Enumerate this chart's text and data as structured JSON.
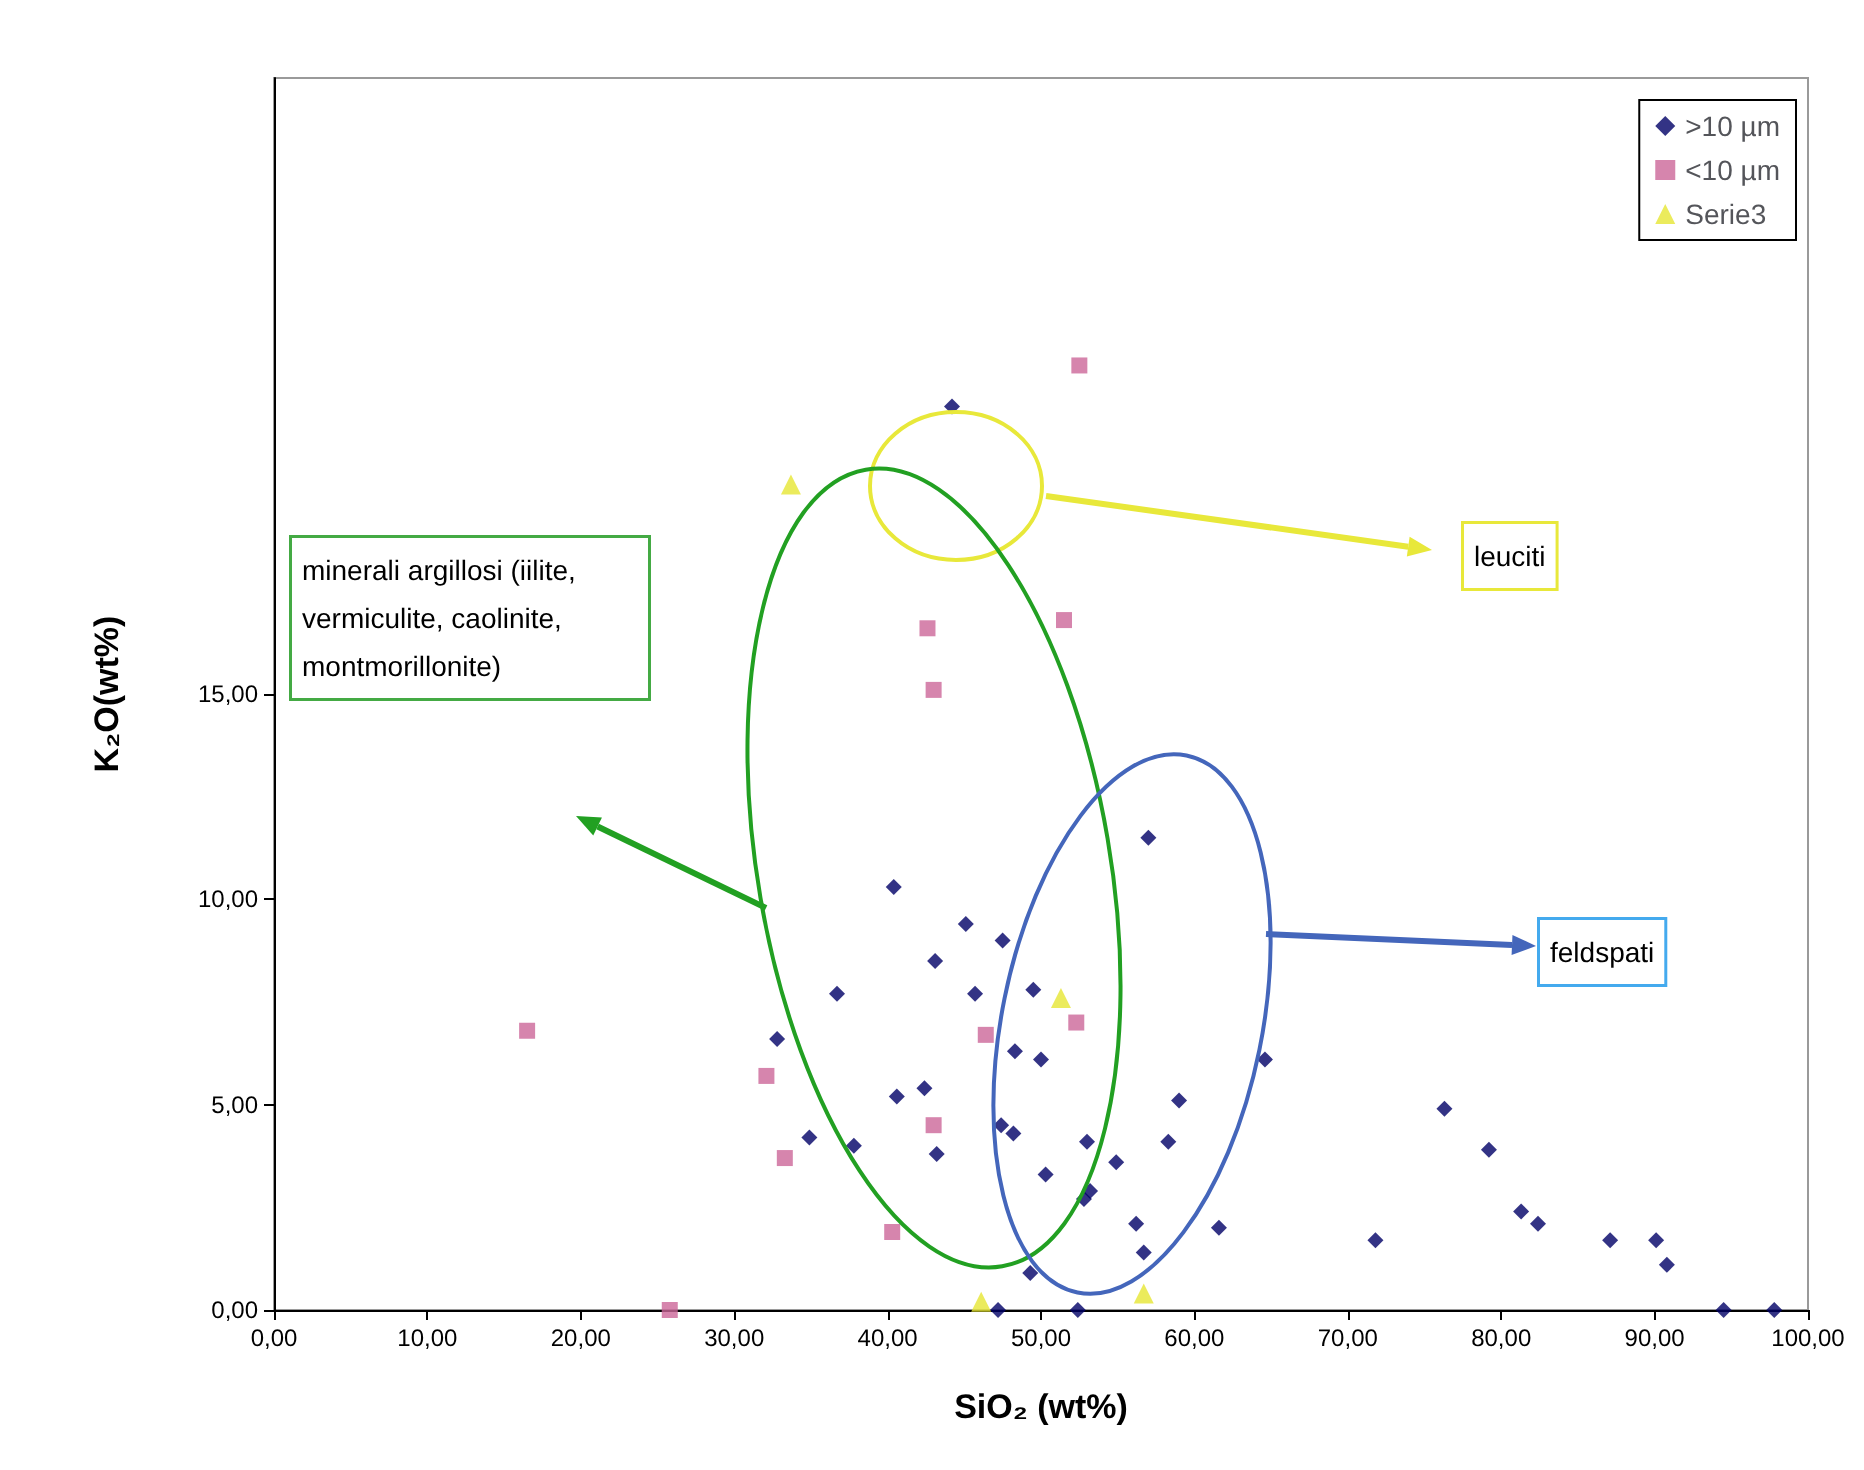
{
  "chart_data": {
    "type": "scatter",
    "xlabel": "SiO₂ (wt%)",
    "ylabel": "K₂O(wt%)",
    "xlim": [
      0,
      100
    ],
    "ylim": [
      0,
      30
    ],
    "xticks": [
      {
        "value": 0,
        "label": "0,00"
      },
      {
        "value": 10,
        "label": "10,00"
      },
      {
        "value": 20,
        "label": "20,00"
      },
      {
        "value": 30,
        "label": "30,00"
      },
      {
        "value": 40,
        "label": "40,00"
      },
      {
        "value": 50,
        "label": "50,00"
      },
      {
        "value": 60,
        "label": "60,00"
      },
      {
        "value": 70,
        "label": "70,00"
      },
      {
        "value": 80,
        "label": "80,00"
      },
      {
        "value": 90,
        "label": "90,00"
      },
      {
        "value": 100,
        "label": "100,00"
      }
    ],
    "yticks": [
      {
        "value": 0,
        "label": "0,00"
      },
      {
        "value": 5,
        "label": "5,00"
      },
      {
        "value": 10,
        "label": "10,00"
      },
      {
        "value": 15,
        "label": "15,00"
      }
    ],
    "grid": false,
    "legend": "top right",
    "series": [
      {
        "name": ">10 µm",
        "color": "#000066",
        "marker": "diamond",
        "x": [
          40.4,
          43.1,
          36.7,
          32.8,
          40.6,
          42.4,
          34.9,
          37.8,
          43.2,
          44.2,
          45.1,
          47.5,
          45.7,
          49.5,
          48.3,
          50.0,
          64.6,
          59.0,
          76.3,
          47.4,
          48.2,
          53.0,
          58.3,
          79.2,
          54.9,
          50.3,
          53.2,
          52.8,
          56.2,
          61.6,
          81.3,
          82.4,
          87.1,
          90.1,
          90.8,
          71.8,
          56.7,
          49.3,
          57.0,
          47.2,
          52.4,
          94.5,
          97.8
        ],
        "values": [
          10.3,
          8.5,
          7.7,
          6.6,
          5.2,
          5.4,
          4.2,
          4.0,
          3.8,
          22.0,
          9.4,
          9.0,
          7.7,
          7.8,
          6.3,
          6.1,
          6.1,
          5.1,
          4.9,
          4.5,
          4.3,
          4.1,
          4.1,
          3.9,
          3.6,
          3.3,
          2.9,
          2.7,
          2.1,
          2.0,
          2.4,
          2.1,
          1.7,
          1.7,
          1.1,
          1.7,
          1.4,
          0.9,
          11.5,
          0,
          0,
          0,
          0
        ]
      },
      {
        "name": "<10 µm",
        "color": "#cc6699",
        "marker": "square",
        "x": [
          16.5,
          32.1,
          33.3,
          40.3,
          25.8,
          42.6,
          43.0,
          43.0,
          51.5,
          46.4,
          52.3,
          52.5
        ],
        "values": [
          6.8,
          5.7,
          3.7,
          1.9,
          0,
          16.6,
          15.1,
          4.5,
          16.8,
          6.7,
          7.0,
          23.0
        ]
      },
      {
        "name": "Serie3",
        "color": "#e6e633",
        "marker": "triangle",
        "x": [
          33.7,
          51.3,
          46.1,
          56.7
        ],
        "values": [
          20.1,
          7.6,
          0.2,
          0.4
        ]
      }
    ],
    "annotations": [
      "leuciti",
      "minerali argillosi (iilite, vermiculite, caolinite, montmorillonite)",
      "feldspati"
    ]
  }
}
